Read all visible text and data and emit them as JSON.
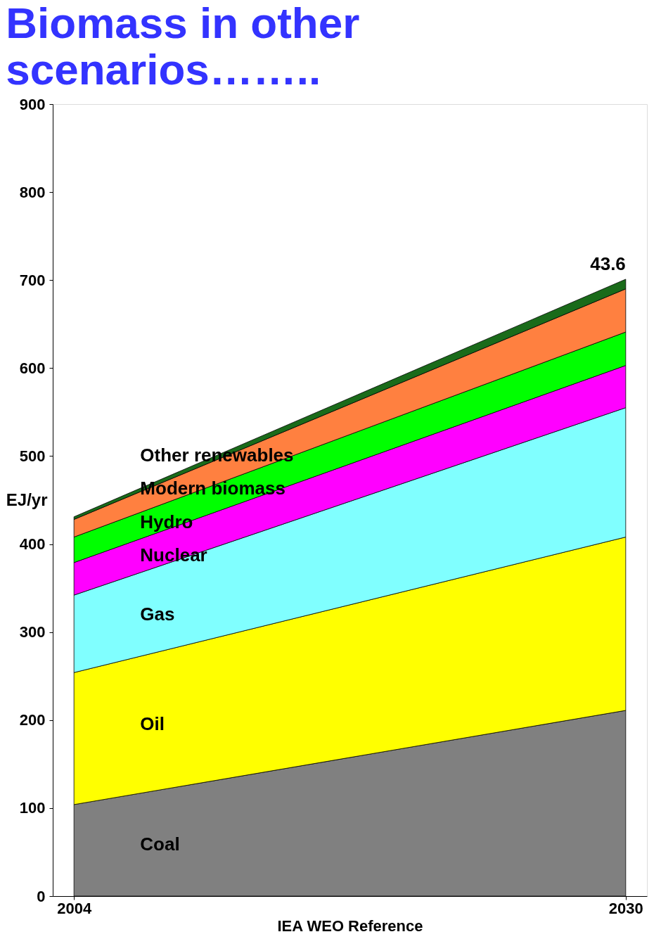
{
  "chart_data": {
    "type": "area",
    "title": "Biomass in other scenarios……..",
    "xlabel": "IEA WEO Reference",
    "ylabel": "EJ/yr",
    "x": [
      2004,
      2030
    ],
    "xlim": [
      2003,
      2031
    ],
    "xticks": [
      2004,
      2030
    ],
    "ylim": [
      0,
      900
    ],
    "yticks": [
      0,
      100,
      200,
      300,
      400,
      500,
      600,
      700,
      800,
      900
    ],
    "stacked": true,
    "grid": false,
    "series": [
      {
        "name": "Coal",
        "color": "#808080",
        "values": [
          104,
          211
        ]
      },
      {
        "name": "Oil",
        "color": "#ffff00",
        "values": [
          150,
          197
        ]
      },
      {
        "name": "Gas",
        "color": "#80ffff",
        "values": [
          88,
          147
        ]
      },
      {
        "name": "Nuclear",
        "color": "#ff00ff",
        "values": [
          37,
          48
        ]
      },
      {
        "name": "Hydro",
        "color": "#00ff00",
        "values": [
          29,
          38
        ]
      },
      {
        "name": "Modern biomass",
        "color": "#ff8040",
        "values": [
          20,
          49
        ]
      },
      {
        "name": "Other renewables",
        "color": "#1a6b1a",
        "values": [
          3,
          11
        ]
      }
    ],
    "annotations": [
      {
        "text": "43.6",
        "x": 2030,
        "y": 701
      }
    ]
  }
}
